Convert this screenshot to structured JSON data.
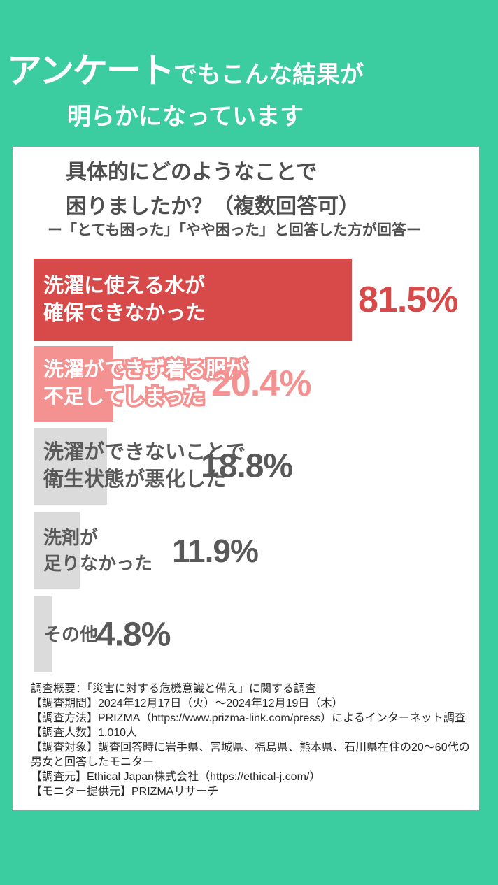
{
  "header": {
    "line1_big": "アンケート",
    "line1_rest": "でもこんな結果が",
    "line2": "明らかになっています"
  },
  "chart": {
    "title_line1": "具体的にどのようなことで",
    "title_line2": "困りましたか？（複数回答可）",
    "subtitle": "ー「とても困った」「やや困った」と回答した方が回答ー"
  },
  "chart_data": {
    "type": "bar",
    "orientation": "horizontal",
    "title": "具体的にどのようなことで困りましたか？（複数回答可）",
    "subtitle": "ー「とても困った」「やや困った」と回答した方が回答ー",
    "categories": [
      "洗濯に使える水が確保できなかった",
      "洗濯ができず着る服が不足してしまった",
      "洗濯ができないことで衛生状態が悪化した",
      "洗剤が足りなかった",
      "その他"
    ],
    "values": [
      81.5,
      20.4,
      18.8,
      11.9,
      4.8
    ],
    "value_labels": [
      "81.5%",
      "20.4%",
      "18.8%",
      "11.9%",
      "4.8%"
    ],
    "bar_label_lines": [
      [
        "洗濯に使える水が",
        "確保できなかった"
      ],
      [
        "洗濯ができず着る服が",
        "不足してしまった"
      ],
      [
        "洗濯ができないことで",
        "衛生状態が悪化した"
      ],
      [
        "洗剤が",
        "足りなかった"
      ],
      [
        "その他",
        ""
      ]
    ],
    "bar_colors": [
      "#D84A4A",
      "#F49191",
      "#DBDBDB",
      "#DBDBDB",
      "#DBDBDB"
    ],
    "value_label_colors": [
      "#D84A4A",
      "#F49191",
      "#595959",
      "#595959",
      "#595959"
    ],
    "xlim": [
      0,
      100
    ],
    "grid": false,
    "legend": false
  },
  "theme": {
    "background": "#3BCDA0",
    "card_background": "#FFFFFF",
    "accent_red": "#D84A4A",
    "accent_pink": "#F49191",
    "bar_gray": "#DBDBDB",
    "text_dark": "#595959"
  },
  "footer": {
    "lines": [
      "調査概要：「災害に対する危機意識と備え」に関する調査",
      "【調査期間】2024年12月17日（火）〜2024年12月19日（木）",
      "【調査方法】PRIZMA（https://www.prizma-link.com/press）によるインターネット調査",
      "【調査人数】1,010人",
      "【調査対象】調査回答時に岩手県、宮城県、福島県、熊本県、石川県在住の20〜60代の男女と回答したモニター",
      "【調査元】Ethical Japan株式会社（https://ethical-j.com/）",
      "【モニター提供元】PRIZMAリサーチ"
    ]
  }
}
